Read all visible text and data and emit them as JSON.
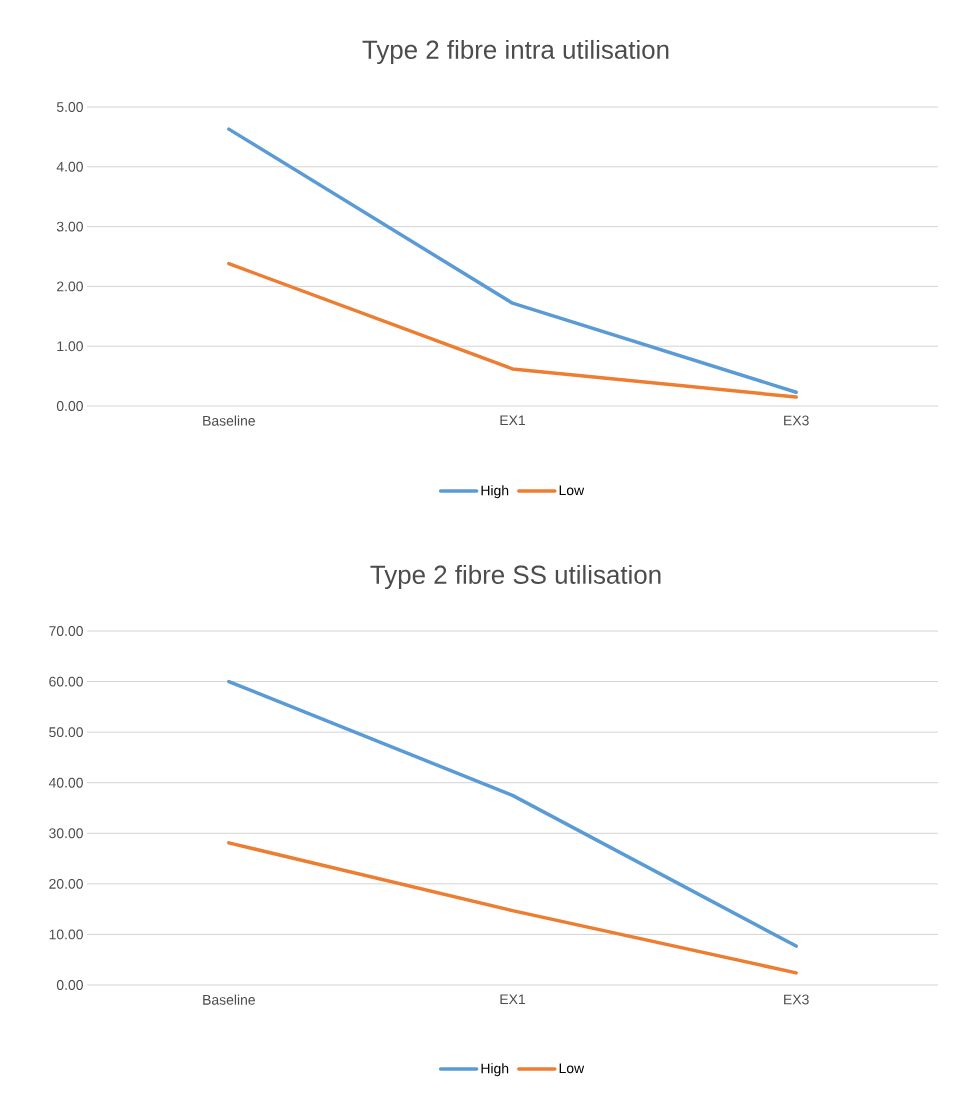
{
  "chart_data": [
    {
      "type": "line",
      "title": "Type 2 fibre intra utilisation",
      "categories": [
        "Baseline",
        "EX1",
        "EX3"
      ],
      "series": [
        {
          "name": "High",
          "color": "#5b9bd5",
          "values": [
            4.63,
            1.72,
            0.23
          ]
        },
        {
          "name": "Low",
          "color": "#ed7d31",
          "values": [
            2.38,
            0.62,
            0.15
          ]
        }
      ],
      "ylim": [
        0,
        5
      ],
      "yticks": [
        {
          "value": 0,
          "label": "0.00"
        },
        {
          "value": 1,
          "label": "1.00"
        },
        {
          "value": 2,
          "label": "2.00"
        },
        {
          "value": 3,
          "label": "3.00"
        },
        {
          "value": 4,
          "label": "4.00"
        },
        {
          "value": 5,
          "label": "5.00"
        }
      ],
      "grid": "y",
      "legend": "bottom"
    },
    {
      "type": "line",
      "title": "Type 2 fibre SS utilisation",
      "categories": [
        "Baseline",
        "EX1",
        "EX3"
      ],
      "series": [
        {
          "name": "High",
          "color": "#5b9bd5",
          "values": [
            60.0,
            37.5,
            7.7
          ]
        },
        {
          "name": "Low",
          "color": "#ed7d31",
          "values": [
            28.1,
            14.7,
            2.4
          ]
        }
      ],
      "ylim": [
        0,
        70
      ],
      "yticks": [
        {
          "value": 0,
          "label": "0.00"
        },
        {
          "value": 10,
          "label": "10.00"
        },
        {
          "value": 20,
          "label": "20.00"
        },
        {
          "value": 30,
          "label": "30.00"
        },
        {
          "value": 40,
          "label": "40.00"
        },
        {
          "value": 50,
          "label": "50.00"
        },
        {
          "value": 60,
          "label": "60.00"
        },
        {
          "value": 70,
          "label": "70.00"
        }
      ],
      "grid": "y",
      "legend": "bottom"
    }
  ]
}
